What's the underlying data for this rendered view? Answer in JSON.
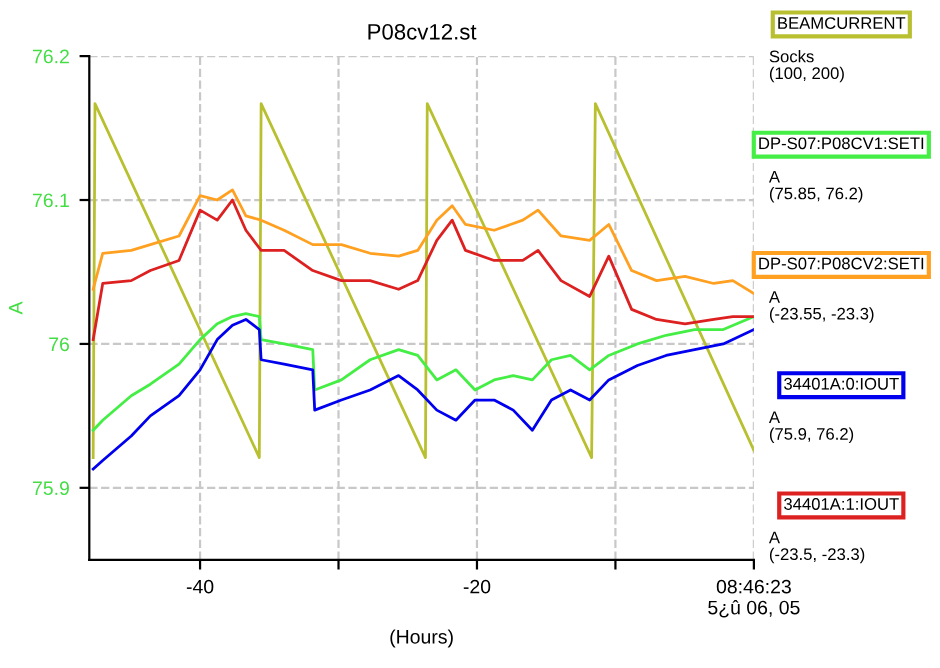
{
  "chart_data": {
    "type": "line",
    "title": "P08cv12.st",
    "xlabel": "(Hours)",
    "ylabel": "A",
    "xlim": [
      -48,
      0
    ],
    "xticks": [
      -40,
      {
        "value": -30,
        "label": null
      },
      -20,
      {
        "value": -10,
        "label": null
      },
      {
        "value": 0,
        "label": "08:46:23\n5¿û 06, 05"
      }
    ],
    "ylim": [
      75.85,
      76.2
    ],
    "yticks": [
      75.9,
      76,
      76.1,
      76.2
    ],
    "grid": true,
    "legend": "right",
    "marker": "none",
    "line_style": "solid",
    "series": [
      {
        "name": "BEAMCURRENT",
        "color": "#b8c030",
        "x": [
          -47.72,
          -47.59,
          -35.72,
          -35.59,
          -23.72,
          -23.59,
          -11.72,
          -11.45,
          0
        ],
        "values": [
          75.921,
          76.167,
          75.921,
          76.167,
          75.921,
          76.167,
          75.921,
          76.167,
          75.926
        ]
      },
      {
        "name": "DP-S07:P08CV1:SETI",
        "color": "#44ee44",
        "x": [
          -47.72,
          -47.03,
          -44.97,
          -43.59,
          -41.52,
          -40,
          -38.76,
          -37.66,
          -36.69,
          -35.72,
          -35.59,
          -33.93,
          -31.86,
          -31.72,
          -29.79,
          -27.72,
          -25.66,
          -24.28,
          -22.9,
          -21.52,
          -20.14,
          -18.76,
          -17.38,
          -16,
          -14.62,
          -13.24,
          -11.86,
          -10.48,
          -8.41,
          -6.34,
          -4.28,
          -2.21,
          0
        ],
        "values": [
          75.94,
          75.947,
          75.964,
          75.972,
          75.986,
          76.003,
          76.014,
          76.019,
          76.021,
          76.019,
          76.003,
          76.0,
          75.996,
          75.968,
          75.975,
          75.989,
          75.996,
          75.992,
          75.975,
          75.982,
          75.968,
          75.975,
          75.978,
          75.975,
          75.989,
          75.992,
          75.982,
          75.992,
          76.0,
          76.006,
          76.01,
          76.01,
          76.019
        ]
      },
      {
        "name": "DP-S07:P08CV2:SETI",
        "color": "#ffa020",
        "x": [
          -47.72,
          -47.03,
          -44.97,
          -43.59,
          -41.52,
          -40,
          -38.76,
          -37.66,
          -36.69,
          -35.59,
          -33.93,
          -31.86,
          -29.79,
          -27.72,
          -25.66,
          -24.28,
          -22.9,
          -21.79,
          -20.83,
          -18.76,
          -16.69,
          -15.59,
          -13.93,
          -11.86,
          -10.48,
          -8.83,
          -7.03,
          -4.97,
          -2.9,
          -1.52,
          0
        ],
        "values": [
          76.038,
          76.063,
          76.065,
          76.069,
          76.075,
          76.103,
          76.1,
          76.107,
          76.089,
          76.086,
          76.079,
          76.069,
          76.069,
          76.063,
          76.061,
          76.065,
          76.086,
          76.096,
          76.083,
          76.079,
          76.086,
          76.093,
          76.075,
          76.072,
          76.083,
          76.051,
          76.044,
          76.047,
          76.042,
          76.044,
          76.035
        ]
      },
      {
        "name": "34401A:0:IOUT",
        "color": "#0000ee",
        "x": [
          -47.72,
          -47.03,
          -44.97,
          -43.59,
          -41.52,
          -40,
          -38.76,
          -37.66,
          -36.69,
          -35.72,
          -35.59,
          -33.93,
          -31.86,
          -31.72,
          -29.79,
          -27.72,
          -25.66,
          -24.28,
          -22.9,
          -21.52,
          -20.14,
          -18.76,
          -17.38,
          -16,
          -14.62,
          -13.24,
          -11.86,
          -10.48,
          -8.41,
          -6.34,
          -4.28,
          -2.21,
          0
        ],
        "values": [
          75.913,
          75.919,
          75.936,
          75.95,
          75.964,
          75.982,
          76.003,
          76.013,
          76.017,
          76.01,
          75.989,
          75.986,
          75.982,
          75.954,
          75.961,
          75.968,
          75.978,
          75.968,
          75.954,
          75.947,
          75.961,
          75.961,
          75.954,
          75.94,
          75.961,
          75.968,
          75.961,
          75.975,
          75.985,
          75.992,
          75.996,
          76.0,
          76.01
        ]
      },
      {
        "name": "34401A:1:IOUT",
        "color": "#dd2020",
        "x": [
          -47.72,
          -47.03,
          -44.97,
          -43.59,
          -41.52,
          -40,
          -38.76,
          -37.66,
          -36.69,
          -35.59,
          -33.93,
          -31.86,
          -29.79,
          -27.72,
          -25.66,
          -24.28,
          -22.9,
          -21.79,
          -20.83,
          -18.76,
          -16.69,
          -15.59,
          -13.93,
          -11.86,
          -10.48,
          -8.83,
          -7.03,
          -4.97,
          -2.9,
          -1.52,
          0
        ],
        "values": [
          76.003,
          76.042,
          76.044,
          76.051,
          76.058,
          76.093,
          76.086,
          76.1,
          76.079,
          76.065,
          76.065,
          76.051,
          76.044,
          76.044,
          76.038,
          76.044,
          76.072,
          76.086,
          76.065,
          76.058,
          76.058,
          76.065,
          76.044,
          76.033,
          76.061,
          76.024,
          76.017,
          76.014,
          76.017,
          76.019,
          76.019
        ]
      }
    ],
    "annotations": [
      "Socks\n(100, 200)",
      "A\n(75.85, 76.2)",
      "A\n(-23.55, -23.3)",
      "A\n(75.9, 76.2)",
      "A\n(-23.5, -23.3)"
    ]
  }
}
